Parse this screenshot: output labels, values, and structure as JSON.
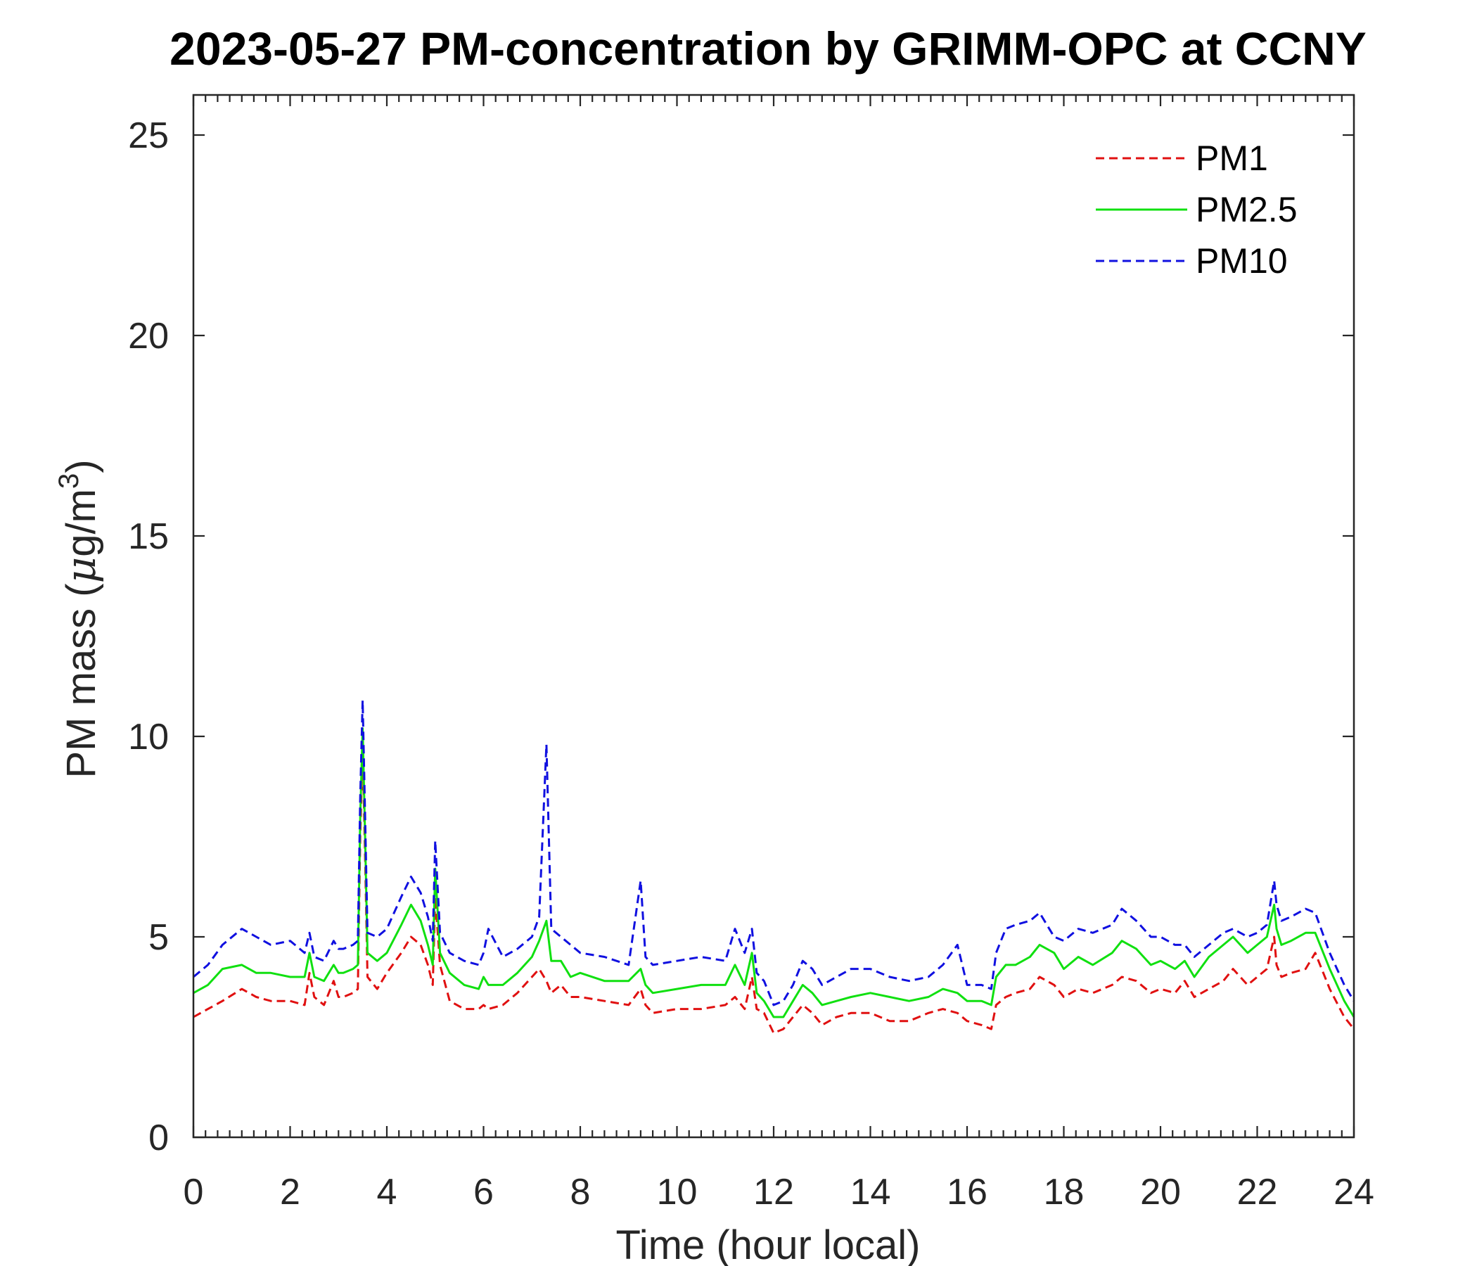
{
  "chart_data": {
    "type": "line",
    "title": "2023-05-27 PM-concentration by GRIMM-OPC at CCNY",
    "xlabel": "Time (hour local)",
    "ylabel_parts": {
      "pre": "PM mass (",
      "greek": "μ",
      "post": "g/m",
      "sup": "3",
      "close": ")"
    },
    "xlim": [
      0,
      24
    ],
    "ylim": [
      0,
      26
    ],
    "xticks": [
      "0",
      "2",
      "4",
      "6",
      "8",
      "10",
      "12",
      "14",
      "16",
      "18",
      "20",
      "22",
      "24"
    ],
    "yticks": [
      "0",
      "5",
      "10",
      "15",
      "20",
      "25"
    ],
    "grid": false,
    "legend_position": "top-right",
    "series": [
      {
        "name": "PM1",
        "color": "#e01010",
        "dash": "dashed",
        "x": [
          0,
          0.3,
          0.6,
          1.0,
          1.3,
          1.6,
          2.0,
          2.3,
          2.4,
          2.5,
          2.7,
          2.9,
          3.0,
          3.1,
          3.3,
          3.4,
          3.45,
          3.5,
          3.55,
          3.6,
          3.8,
          4.0,
          4.3,
          4.5,
          4.7,
          4.85,
          4.95,
          5.0,
          5.1,
          5.3,
          5.6,
          5.9,
          6.0,
          6.1,
          6.4,
          6.7,
          7.0,
          7.15,
          7.3,
          7.4,
          7.6,
          7.8,
          8.0,
          8.5,
          9.0,
          9.25,
          9.35,
          9.5,
          10.0,
          10.5,
          11.0,
          11.2,
          11.4,
          11.55,
          11.65,
          11.8,
          12.0,
          12.2,
          12.4,
          12.6,
          12.8,
          13.0,
          13.3,
          13.6,
          14.0,
          14.4,
          14.8,
          15.2,
          15.5,
          15.8,
          16.0,
          16.3,
          16.5,
          16.6,
          16.8,
          17.0,
          17.3,
          17.5,
          17.8,
          18.0,
          18.3,
          18.6,
          19.0,
          19.2,
          19.5,
          19.8,
          20.0,
          20.3,
          20.5,
          20.7,
          21.0,
          21.3,
          21.5,
          21.8,
          22.0,
          22.2,
          22.35,
          22.4,
          22.5,
          22.7,
          23.0,
          23.2,
          23.5,
          23.8,
          24.0
        ],
        "y": [
          3.0,
          3.2,
          3.4,
          3.7,
          3.5,
          3.4,
          3.4,
          3.3,
          4.1,
          3.5,
          3.3,
          3.9,
          3.5,
          3.5,
          3.6,
          3.7,
          7.5,
          9.7,
          7.0,
          4.0,
          3.7,
          4.1,
          4.6,
          5.0,
          4.8,
          4.3,
          3.8,
          6.0,
          4.3,
          3.4,
          3.2,
          3.2,
          3.3,
          3.2,
          3.3,
          3.6,
          4.0,
          4.2,
          3.9,
          3.6,
          3.8,
          3.5,
          3.5,
          3.4,
          3.3,
          3.7,
          3.3,
          3.1,
          3.2,
          3.2,
          3.3,
          3.5,
          3.2,
          4.0,
          3.2,
          3.1,
          2.6,
          2.7,
          3.0,
          3.3,
          3.1,
          2.8,
          3.0,
          3.1,
          3.1,
          2.9,
          2.9,
          3.1,
          3.2,
          3.1,
          2.9,
          2.8,
          2.7,
          3.3,
          3.5,
          3.6,
          3.7,
          4.0,
          3.8,
          3.5,
          3.7,
          3.6,
          3.8,
          4.0,
          3.9,
          3.6,
          3.7,
          3.6,
          3.9,
          3.5,
          3.7,
          3.9,
          4.2,
          3.8,
          4.0,
          4.2,
          5.0,
          4.3,
          4.0,
          4.1,
          4.2,
          4.6,
          3.7,
          3.0,
          2.7
        ]
      },
      {
        "name": "PM2.5",
        "color": "#10e010",
        "dash": "solid",
        "x": [
          0,
          0.3,
          0.6,
          1.0,
          1.3,
          1.6,
          2.0,
          2.3,
          2.4,
          2.5,
          2.7,
          2.9,
          3.0,
          3.1,
          3.3,
          3.4,
          3.45,
          3.5,
          3.55,
          3.6,
          3.8,
          4.0,
          4.3,
          4.5,
          4.7,
          4.85,
          4.95,
          5.0,
          5.1,
          5.3,
          5.6,
          5.9,
          6.0,
          6.1,
          6.4,
          6.7,
          7.0,
          7.15,
          7.3,
          7.4,
          7.6,
          7.8,
          8.0,
          8.5,
          9.0,
          9.25,
          9.35,
          9.5,
          10.0,
          10.5,
          11.0,
          11.2,
          11.4,
          11.55,
          11.65,
          11.8,
          12.0,
          12.2,
          12.4,
          12.6,
          12.8,
          13.0,
          13.3,
          13.6,
          14.0,
          14.4,
          14.8,
          15.2,
          15.5,
          15.8,
          16.0,
          16.3,
          16.5,
          16.6,
          16.8,
          17.0,
          17.3,
          17.5,
          17.8,
          18.0,
          18.3,
          18.6,
          19.0,
          19.2,
          19.5,
          19.8,
          20.0,
          20.3,
          20.5,
          20.7,
          21.0,
          21.3,
          21.5,
          21.8,
          22.0,
          22.2,
          22.35,
          22.4,
          22.5,
          22.7,
          23.0,
          23.2,
          23.5,
          23.8,
          24.0
        ],
        "y": [
          3.6,
          3.8,
          4.2,
          4.3,
          4.1,
          4.1,
          4.0,
          4.0,
          4.6,
          4.0,
          3.9,
          4.3,
          4.1,
          4.1,
          4.2,
          4.3,
          8.0,
          10.2,
          7.5,
          4.6,
          4.4,
          4.6,
          5.3,
          5.8,
          5.4,
          4.8,
          4.3,
          6.7,
          4.6,
          4.1,
          3.8,
          3.7,
          4.0,
          3.8,
          3.8,
          4.1,
          4.5,
          4.9,
          5.4,
          4.4,
          4.4,
          4.0,
          4.1,
          3.9,
          3.9,
          4.2,
          3.8,
          3.6,
          3.7,
          3.8,
          3.8,
          4.3,
          3.8,
          4.6,
          3.6,
          3.4,
          3.0,
          3.0,
          3.4,
          3.8,
          3.6,
          3.3,
          3.4,
          3.5,
          3.6,
          3.5,
          3.4,
          3.5,
          3.7,
          3.6,
          3.4,
          3.4,
          3.3,
          4.0,
          4.3,
          4.3,
          4.5,
          4.8,
          4.6,
          4.2,
          4.5,
          4.3,
          4.6,
          4.9,
          4.7,
          4.3,
          4.4,
          4.2,
          4.4,
          4.0,
          4.5,
          4.8,
          5.0,
          4.6,
          4.8,
          5.0,
          5.8,
          5.2,
          4.8,
          4.9,
          5.1,
          5.1,
          4.2,
          3.4,
          3.0
        ]
      },
      {
        "name": "PM10",
        "color": "#1010e0",
        "dash": "dashed",
        "x": [
          0,
          0.3,
          0.6,
          1.0,
          1.3,
          1.6,
          2.0,
          2.3,
          2.4,
          2.5,
          2.7,
          2.9,
          3.0,
          3.1,
          3.3,
          3.4,
          3.45,
          3.5,
          3.55,
          3.6,
          3.8,
          4.0,
          4.3,
          4.5,
          4.7,
          4.85,
          4.95,
          5.0,
          5.1,
          5.3,
          5.6,
          5.9,
          6.0,
          6.1,
          6.4,
          6.7,
          7.0,
          7.15,
          7.3,
          7.4,
          7.6,
          7.8,
          8.0,
          8.5,
          9.0,
          9.25,
          9.35,
          9.5,
          10.0,
          10.5,
          11.0,
          11.2,
          11.4,
          11.55,
          11.65,
          11.8,
          12.0,
          12.2,
          12.4,
          12.6,
          12.8,
          13.0,
          13.3,
          13.6,
          14.0,
          14.4,
          14.8,
          15.2,
          15.5,
          15.8,
          16.0,
          16.3,
          16.5,
          16.6,
          16.8,
          17.0,
          17.3,
          17.5,
          17.8,
          18.0,
          18.3,
          18.6,
          19.0,
          19.2,
          19.5,
          19.8,
          20.0,
          20.3,
          20.5,
          20.7,
          21.0,
          21.3,
          21.5,
          21.8,
          22.0,
          22.2,
          22.35,
          22.4,
          22.5,
          22.7,
          23.0,
          23.2,
          23.5,
          23.8,
          24.0
        ],
        "y": [
          4.0,
          4.3,
          4.8,
          5.2,
          5.0,
          4.8,
          4.9,
          4.6,
          5.1,
          4.5,
          4.4,
          4.9,
          4.7,
          4.7,
          4.8,
          4.9,
          8.5,
          10.9,
          8.0,
          5.1,
          5.0,
          5.2,
          6.0,
          6.5,
          6.1,
          5.5,
          4.9,
          7.4,
          5.1,
          4.6,
          4.4,
          4.3,
          4.6,
          5.2,
          4.5,
          4.7,
          5.0,
          5.5,
          9.8,
          5.2,
          5.0,
          4.8,
          4.6,
          4.5,
          4.3,
          6.4,
          4.5,
          4.3,
          4.4,
          4.5,
          4.4,
          5.2,
          4.6,
          5.2,
          4.1,
          3.9,
          3.3,
          3.4,
          3.8,
          4.4,
          4.2,
          3.8,
          4.0,
          4.2,
          4.2,
          4.0,
          3.9,
          4.0,
          4.3,
          4.8,
          3.8,
          3.8,
          3.7,
          4.6,
          5.2,
          5.3,
          5.4,
          5.6,
          5.0,
          4.9,
          5.2,
          5.1,
          5.3,
          5.7,
          5.4,
          5.0,
          5.0,
          4.8,
          4.8,
          4.5,
          4.8,
          5.1,
          5.2,
          5.0,
          5.1,
          5.3,
          6.4,
          5.8,
          5.4,
          5.5,
          5.7,
          5.6,
          4.6,
          3.8,
          3.4
        ]
      }
    ]
  }
}
